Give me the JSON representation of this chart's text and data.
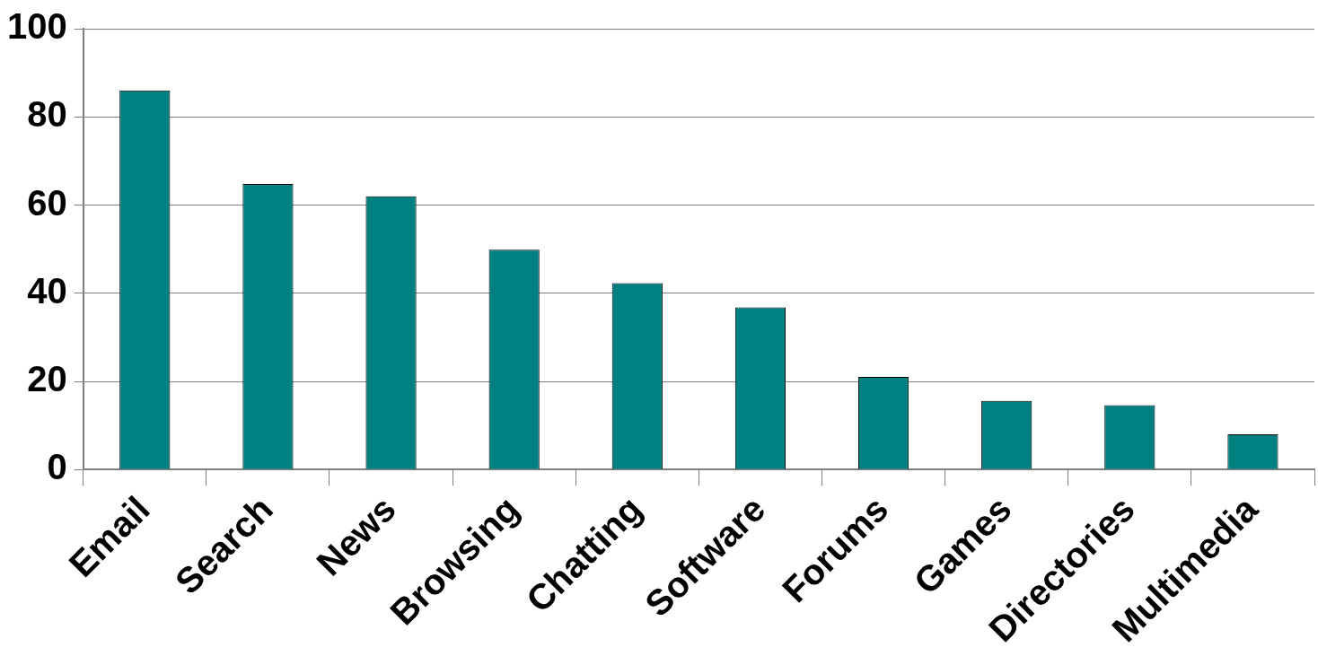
{
  "chart_data": {
    "type": "bar",
    "categories": [
      "Email",
      "Search",
      "News",
      "Browsing",
      "Chatting",
      "Software",
      "Forums",
      "Games",
      "Directories",
      "Multimedia"
    ],
    "values": [
      86,
      64.8,
      62,
      49.9,
      42.3,
      36.8,
      21,
      15.6,
      14.6,
      8
    ],
    "color": "#008080",
    "ylim": [
      0,
      100
    ],
    "yticks": [
      0,
      20,
      40,
      60,
      80,
      100
    ],
    "grid": "y",
    "legend": false
  }
}
